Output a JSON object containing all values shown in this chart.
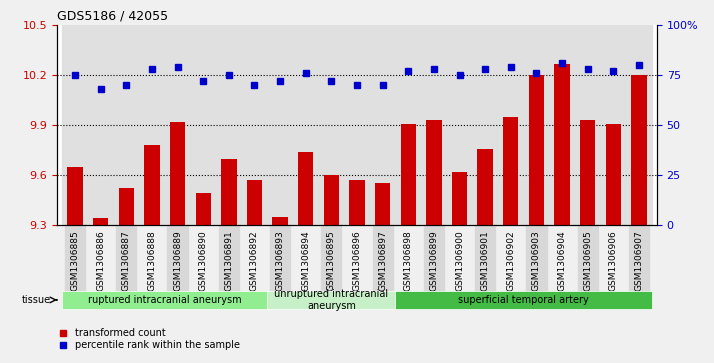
{
  "title": "GDS5186 / 42055",
  "samples": [
    "GSM1306885",
    "GSM1306886",
    "GSM1306887",
    "GSM1306888",
    "GSM1306889",
    "GSM1306890",
    "GSM1306891",
    "GSM1306892",
    "GSM1306893",
    "GSM1306894",
    "GSM1306895",
    "GSM1306896",
    "GSM1306897",
    "GSM1306898",
    "GSM1306899",
    "GSM1306900",
    "GSM1306901",
    "GSM1306902",
    "GSM1306903",
    "GSM1306904",
    "GSM1306905",
    "GSM1306906",
    "GSM1306907"
  ],
  "bar_values": [
    9.65,
    9.34,
    9.52,
    9.78,
    9.92,
    9.49,
    9.7,
    9.57,
    9.35,
    9.74,
    9.6,
    9.57,
    9.55,
    9.91,
    9.93,
    9.62,
    9.76,
    9.95,
    10.2,
    10.27,
    9.93,
    9.91,
    10.2
  ],
  "blue_values": [
    75,
    68,
    70,
    78,
    79,
    72,
    75,
    70,
    72,
    76,
    72,
    70,
    70,
    77,
    78,
    75,
    78,
    79,
    76,
    81,
    78,
    77,
    80
  ],
  "ylim_left": [
    9.3,
    10.5
  ],
  "ylim_right": [
    0,
    100
  ],
  "yticks_left": [
    9.3,
    9.6,
    9.9,
    10.2,
    10.5
  ],
  "yticks_right": [
    0,
    25,
    50,
    75,
    100
  ],
  "bar_color": "#cc0000",
  "dot_color": "#0000cc",
  "bg_color": "#e8e8e8",
  "plot_bg": "#ffffff",
  "groups": [
    {
      "label": "ruptured intracranial aneurysm",
      "start": 0,
      "end": 8,
      "color": "#90ee90"
    },
    {
      "label": "unruptured intracranial\naneurysm",
      "start": 8,
      "end": 13,
      "color": "#c8f0c8"
    },
    {
      "label": "superficial temporal artery",
      "start": 13,
      "end": 23,
      "color": "#44bb44"
    }
  ],
  "tissue_label": "tissue",
  "legend_bar_label": "transformed count",
  "legend_dot_label": "percentile rank within the sample",
  "grid_yticks": [
    9.6,
    9.9,
    10.2
  ]
}
